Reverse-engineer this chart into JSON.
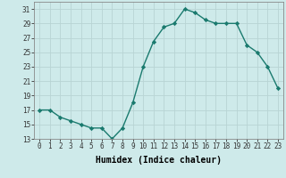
{
  "x": [
    0,
    1,
    2,
    3,
    4,
    5,
    6,
    7,
    8,
    9,
    10,
    11,
    12,
    13,
    14,
    15,
    16,
    17,
    18,
    19,
    20,
    21,
    22,
    23
  ],
  "y": [
    17,
    17,
    16,
    15.5,
    15,
    14.5,
    14.5,
    13,
    14.5,
    18,
    23,
    26.5,
    28.5,
    29,
    31,
    30.5,
    29.5,
    29,
    29,
    29,
    26,
    25,
    23,
    20
  ],
  "line_color": "#1a7a6e",
  "marker": "D",
  "marker_size": 2.2,
  "bg_color": "#ceeaea",
  "grid_color": "#b8d4d4",
  "xlabel": "Humidex (Indice chaleur)",
  "ylim": [
    13,
    32
  ],
  "xlim": [
    -0.5,
    23.5
  ],
  "yticks": [
    13,
    15,
    17,
    19,
    21,
    23,
    25,
    27,
    29,
    31
  ],
  "xticks": [
    0,
    1,
    2,
    3,
    4,
    5,
    6,
    7,
    8,
    9,
    10,
    11,
    12,
    13,
    14,
    15,
    16,
    17,
    18,
    19,
    20,
    21,
    22,
    23
  ],
  "tick_fontsize": 5.5,
  "xlabel_fontsize": 7,
  "line_width": 1.0
}
